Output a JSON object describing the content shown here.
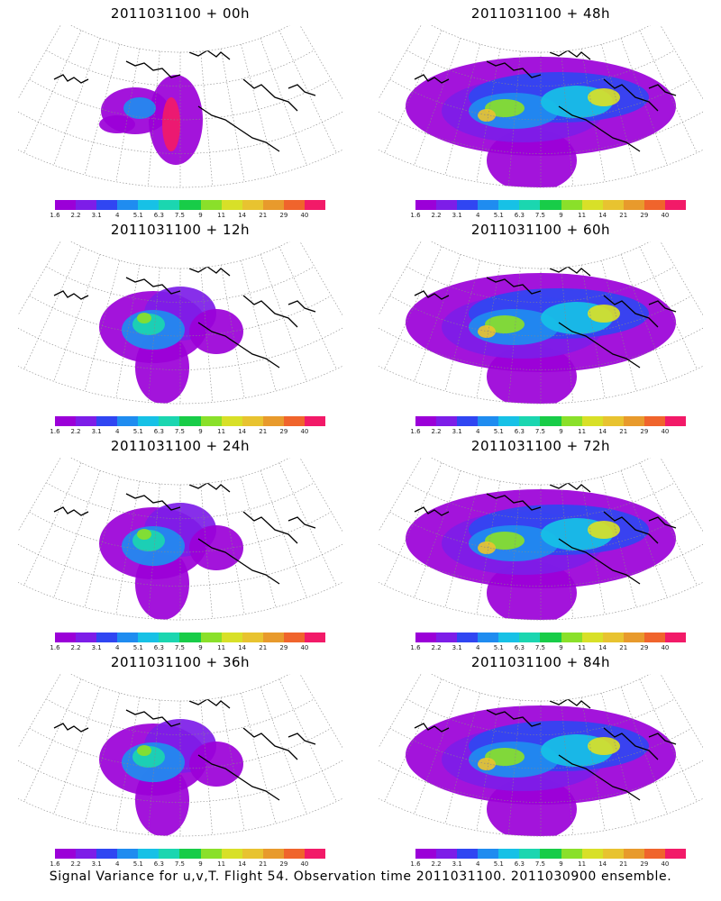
{
  "colorbar": {
    "labels": [
      "1.6",
      "2.2",
      "3.1",
      "4",
      "5.1",
      "6.3",
      "7.5",
      "9",
      "11",
      "14",
      "21",
      "29",
      "40"
    ],
    "colors": [
      "#9b00d8",
      "#7d1de8",
      "#3046f2",
      "#1f8cf0",
      "#17c1e6",
      "#1bd6b0",
      "#18cc48",
      "#8ae02a",
      "#d8e028",
      "#e8c330",
      "#e89a2c",
      "#f0642c",
      "#f21a68"
    ]
  },
  "panels": [
    {
      "title": "2011031100 + 00h",
      "spread": "small"
    },
    {
      "title": "2011031100 + 48h",
      "spread": "large"
    },
    {
      "title": "2011031100 + 12h",
      "spread": "medium"
    },
    {
      "title": "2011031100 + 60h",
      "spread": "large"
    },
    {
      "title": "2011031100 + 24h",
      "spread": "medium"
    },
    {
      "title": "2011031100 + 72h",
      "spread": "large"
    },
    {
      "title": "2011031100 + 36h",
      "spread": "medium"
    },
    {
      "title": "2011031100 + 84h",
      "spread": "large"
    }
  ],
  "caption": "Signal Variance for u,v,T. Flight 54. Observation time 2011031100. 2011030900 ensemble."
}
